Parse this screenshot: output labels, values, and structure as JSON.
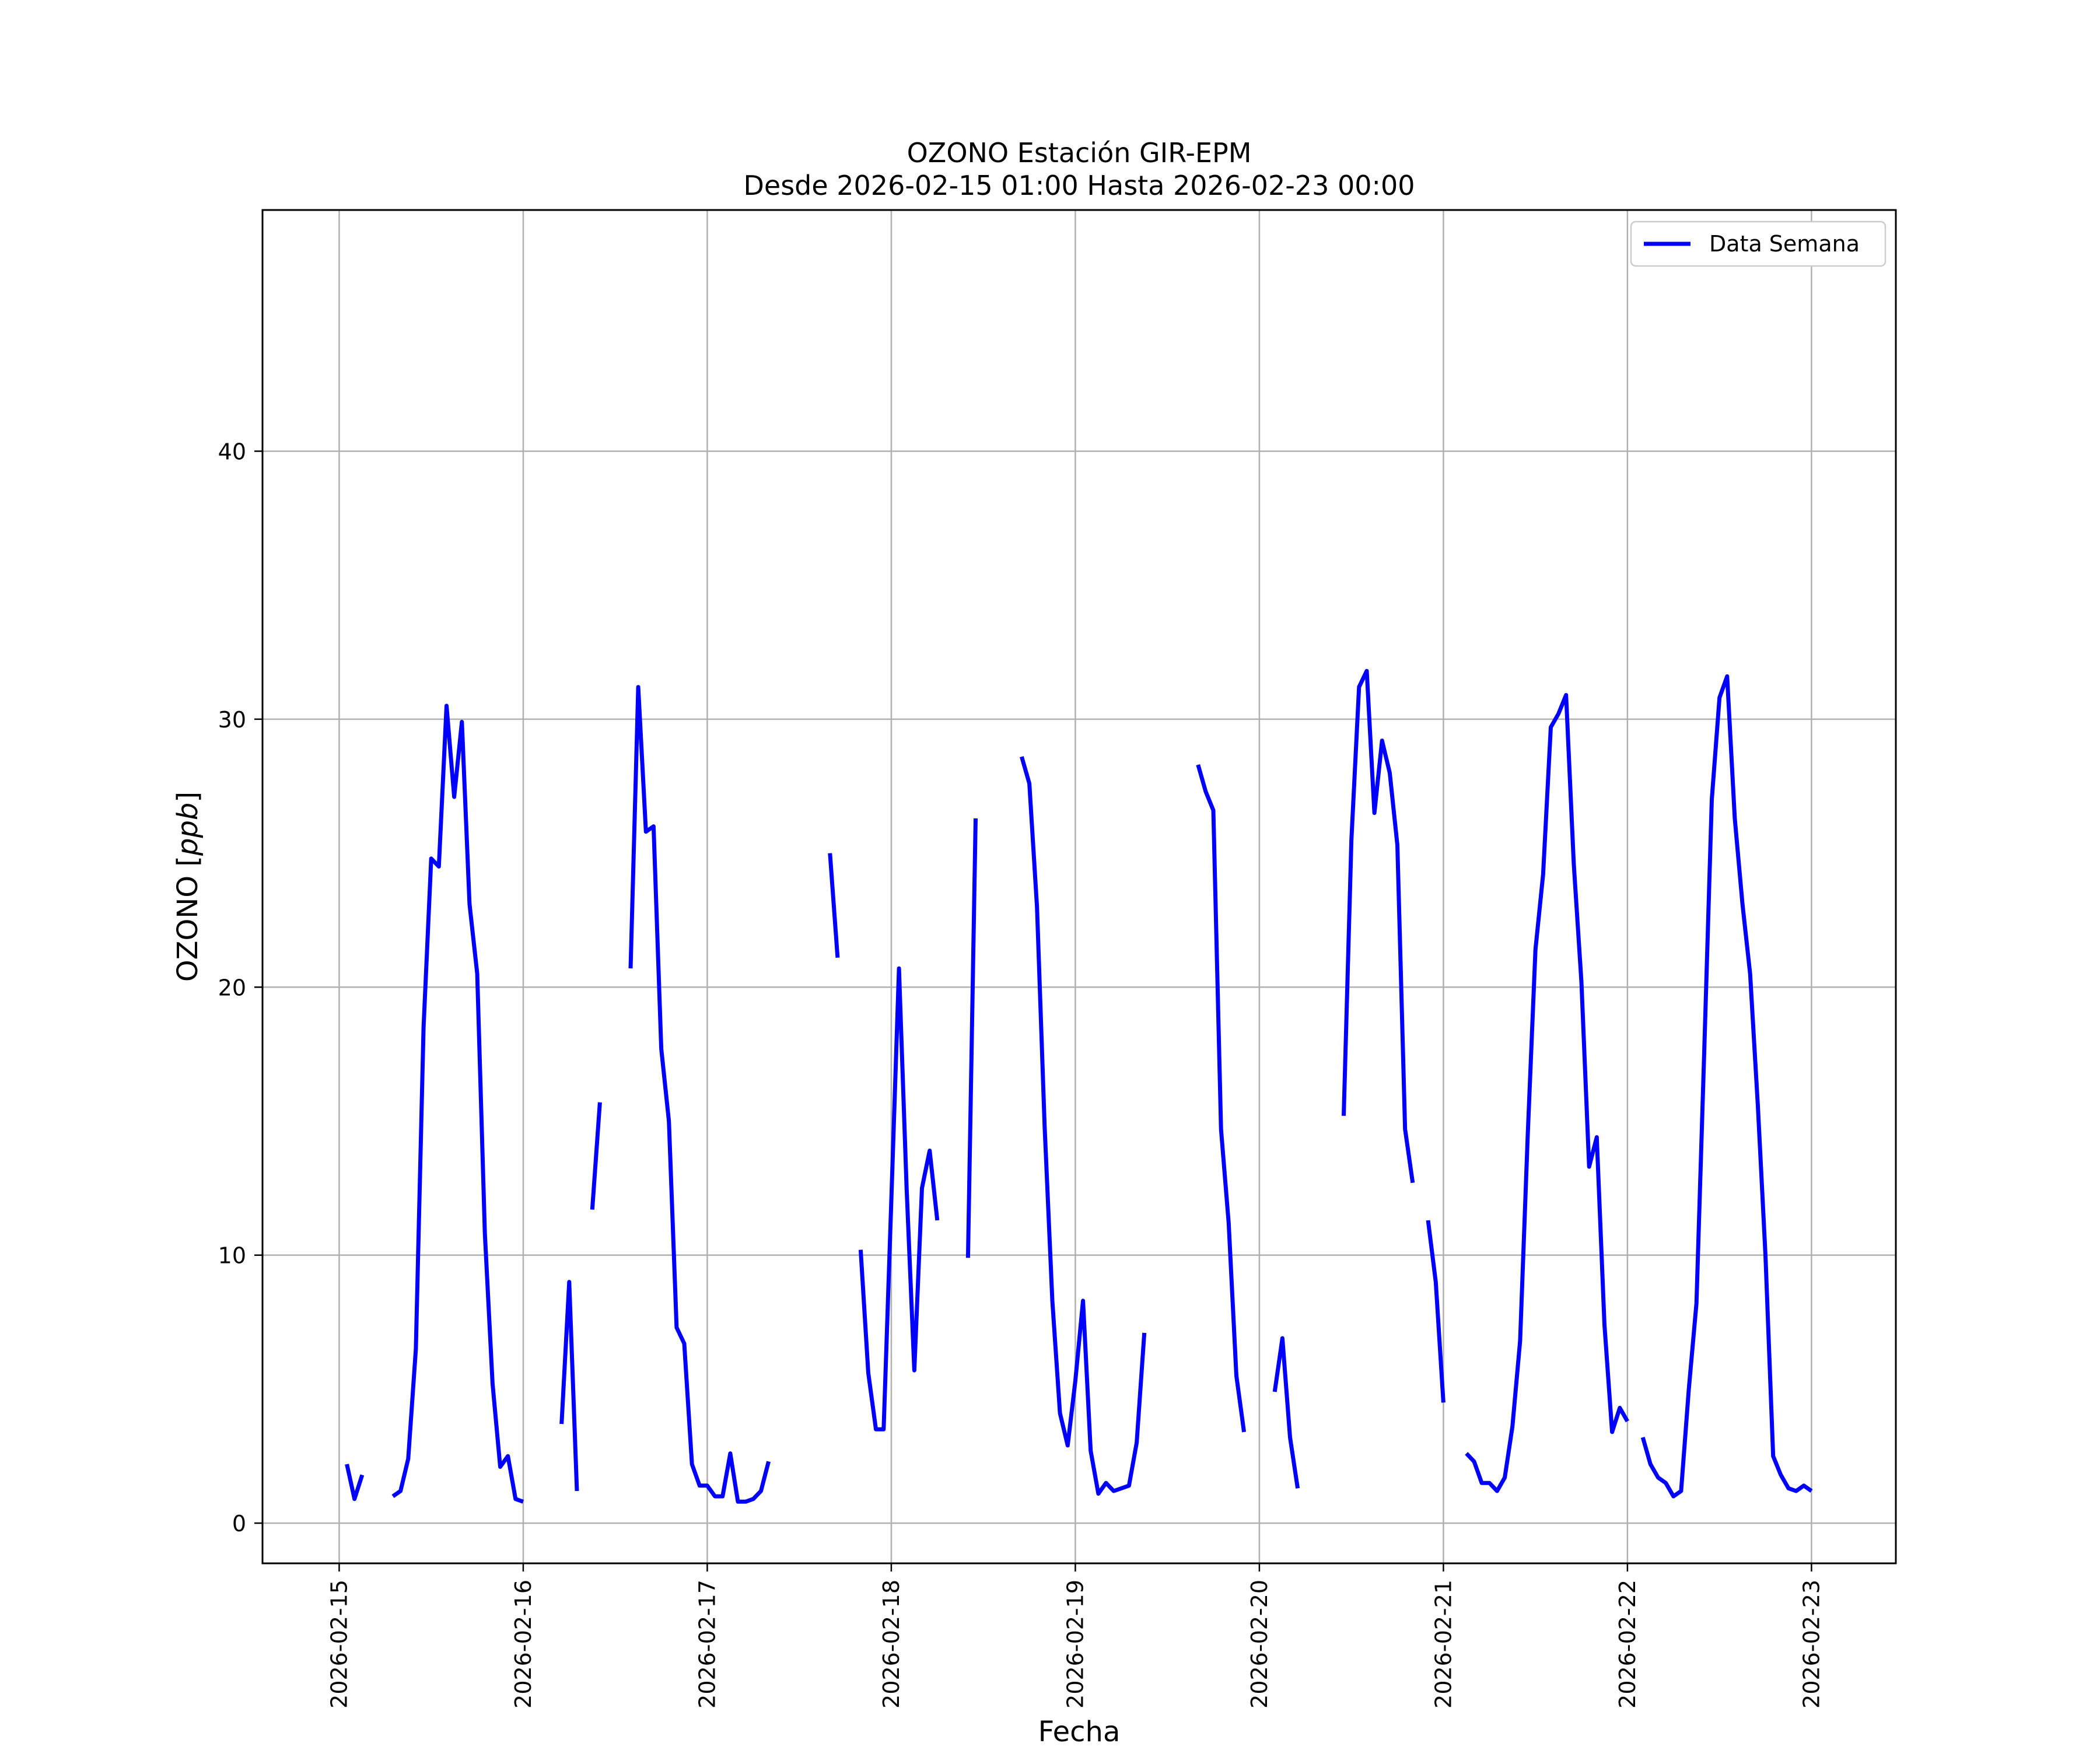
{
  "chart_data": {
    "type": "line",
    "title": "OZONO Estación GIR-EPM",
    "subtitle": "Desde 2026-02-15 01:00 Hasta 2026-02-23 00:00",
    "xlabel": "Fecha",
    "ylabel_prefix": "OZONO [",
    "ylabel_unit": "ppb",
    "ylabel_suffix": "]",
    "x_ticks": [
      "2026-02-15",
      "2026-02-16",
      "2026-02-17",
      "2026-02-18",
      "2026-02-19",
      "2026-02-20",
      "2026-02-21",
      "2026-02-22",
      "2026-02-23"
    ],
    "xlim": [
      "2026-02-14 14:00",
      "2026-02-23 11:00"
    ],
    "y_ticks": [
      0,
      10,
      20,
      30,
      40
    ],
    "ylim": [
      -1.5,
      49
    ],
    "grid": true,
    "legend_position": "upper right",
    "color": "#0000ff",
    "series": [
      {
        "name": "Data Semana",
        "points": [
          [
            "2026-02-15 01:00",
            2.2
          ],
          [
            "2026-02-15 02:00",
            0.9
          ],
          [
            "2026-02-15 03:00",
            1.8
          ],
          [
            "2026-02-15 04:00",
            null
          ],
          [
            "2026-02-15 07:00",
            1.0
          ],
          [
            "2026-02-15 08:00",
            1.2
          ],
          [
            "2026-02-15 09:00",
            2.4
          ],
          [
            "2026-02-15 10:00",
            6.5
          ],
          [
            "2026-02-15 11:00",
            18.5
          ],
          [
            "2026-02-15 12:00",
            24.8
          ],
          [
            "2026-02-15 13:00",
            24.5
          ],
          [
            "2026-02-15 14:00",
            30.5
          ],
          [
            "2026-02-15 15:00",
            27.1
          ],
          [
            "2026-02-15 16:00",
            29.9
          ],
          [
            "2026-02-15 17:00",
            23.1
          ],
          [
            "2026-02-15 18:00",
            20.5
          ],
          [
            "2026-02-15 19:00",
            10.8
          ],
          [
            "2026-02-15 20:00",
            5.2
          ],
          [
            "2026-02-15 21:00",
            2.1
          ],
          [
            "2026-02-15 22:00",
            2.5
          ],
          [
            "2026-02-15 23:00",
            0.9
          ],
          [
            "2026-02-16 00:00",
            0.8
          ],
          [
            "2026-02-16 01:00",
            null
          ],
          [
            "2026-02-16 05:00",
            3.7
          ],
          [
            "2026-02-16 06:00",
            9.0
          ],
          [
            "2026-02-16 07:00",
            1.2
          ],
          [
            "2026-02-16 08:00",
            null
          ],
          [
            "2026-02-16 09:00",
            11.7
          ],
          [
            "2026-02-16 10:00",
            15.7
          ],
          [
            "2026-02-16 11:00",
            null
          ],
          [
            "2026-02-16 14:00",
            20.7
          ],
          [
            "2026-02-16 15:00",
            31.2
          ],
          [
            "2026-02-16 16:00",
            25.8
          ],
          [
            "2026-02-16 17:00",
            26.0
          ],
          [
            "2026-02-16 18:00",
            17.7
          ],
          [
            "2026-02-16 19:00",
            15.0
          ],
          [
            "2026-02-16 20:00",
            7.3
          ],
          [
            "2026-02-16 21:00",
            6.7
          ],
          [
            "2026-02-16 22:00",
            2.2
          ],
          [
            "2026-02-16 23:00",
            1.4
          ],
          [
            "2026-02-17 00:00",
            1.4
          ],
          [
            "2026-02-17 01:00",
            1.0
          ],
          [
            "2026-02-17 02:00",
            1.0
          ],
          [
            "2026-02-17 03:00",
            2.6
          ],
          [
            "2026-02-17 04:00",
            0.8
          ],
          [
            "2026-02-17 05:00",
            0.8
          ],
          [
            "2026-02-17 06:00",
            0.9
          ],
          [
            "2026-02-17 07:00",
            1.2
          ],
          [
            "2026-02-17 08:00",
            2.3
          ],
          [
            "2026-02-17 09:00",
            null
          ],
          [
            "2026-02-17 16:00",
            25.0
          ],
          [
            "2026-02-17 17:00",
            21.1
          ],
          [
            "2026-02-17 18:00",
            null
          ],
          [
            "2026-02-17 20:00",
            10.2
          ],
          [
            "2026-02-17 21:00",
            5.6
          ],
          [
            "2026-02-17 22:00",
            3.5
          ],
          [
            "2026-02-17 23:00",
            3.5
          ],
          [
            "2026-02-18 00:00",
            12.0
          ],
          [
            "2026-02-18 01:00",
            20.7
          ],
          [
            "2026-02-18 02:00",
            12.5
          ],
          [
            "2026-02-18 03:00",
            5.7
          ],
          [
            "2026-02-18 04:00",
            12.5
          ],
          [
            "2026-02-18 05:00",
            13.9
          ],
          [
            "2026-02-18 06:00",
            11.3
          ],
          [
            "2026-02-18 07:00",
            null
          ],
          [
            "2026-02-18 10:00",
            9.9
          ],
          [
            "2026-02-18 11:00",
            26.3
          ],
          [
            "2026-02-18 12:00",
            null
          ],
          [
            "2026-02-18 17:00",
            28.6
          ],
          [
            "2026-02-18 18:00",
            27.6
          ],
          [
            "2026-02-18 19:00",
            23.0
          ],
          [
            "2026-02-18 20:00",
            14.8
          ],
          [
            "2026-02-18 21:00",
            8.3
          ],
          [
            "2026-02-18 22:00",
            4.1
          ],
          [
            "2026-02-18 23:00",
            2.9
          ],
          [
            "2026-02-19 00:00",
            5.3
          ],
          [
            "2026-02-19 01:00",
            8.3
          ],
          [
            "2026-02-19 02:00",
            2.7
          ],
          [
            "2026-02-19 03:00",
            1.1
          ],
          [
            "2026-02-19 04:00",
            1.5
          ],
          [
            "2026-02-19 05:00",
            1.2
          ],
          [
            "2026-02-19 06:00",
            1.3
          ],
          [
            "2026-02-19 07:00",
            1.4
          ],
          [
            "2026-02-19 08:00",
            3.0
          ],
          [
            "2026-02-19 09:00",
            7.1
          ],
          [
            "2026-02-19 10:00",
            null
          ],
          [
            "2026-02-19 16:00",
            28.3
          ],
          [
            "2026-02-19 17:00",
            27.3
          ],
          [
            "2026-02-19 18:00",
            26.6
          ],
          [
            "2026-02-19 19:00",
            14.7
          ],
          [
            "2026-02-19 20:00",
            11.2
          ],
          [
            "2026-02-19 21:00",
            5.5
          ],
          [
            "2026-02-19 22:00",
            3.4
          ],
          [
            "2026-02-19 23:00",
            null
          ],
          [
            "2026-02-20 02:00",
            4.9
          ],
          [
            "2026-02-20 03:00",
            6.9
          ],
          [
            "2026-02-20 04:00",
            3.2
          ],
          [
            "2026-02-20 05:00",
            1.3
          ],
          [
            "2026-02-20 06:00",
            null
          ],
          [
            "2026-02-20 11:00",
            15.2
          ],
          [
            "2026-02-20 12:00",
            25.5
          ],
          [
            "2026-02-20 13:00",
            31.2
          ],
          [
            "2026-02-20 14:00",
            31.8
          ],
          [
            "2026-02-20 15:00",
            26.5
          ],
          [
            "2026-02-20 16:00",
            29.2
          ],
          [
            "2026-02-20 17:00",
            28.0
          ],
          [
            "2026-02-20 18:00",
            25.3
          ],
          [
            "2026-02-20 19:00",
            14.7
          ],
          [
            "2026-02-20 20:00",
            12.7
          ],
          [
            "2026-02-20 21:00",
            null
          ],
          [
            "2026-02-20 22:00",
            11.3
          ],
          [
            "2026-02-20 23:00",
            9.0
          ],
          [
            "2026-02-21 00:00",
            4.5
          ],
          [
            "2026-02-21 01:00",
            null
          ],
          [
            "2026-02-21 03:00",
            2.6
          ],
          [
            "2026-02-21 04:00",
            2.3
          ],
          [
            "2026-02-21 05:00",
            1.5
          ],
          [
            "2026-02-21 06:00",
            1.5
          ],
          [
            "2026-02-21 07:00",
            1.2
          ],
          [
            "2026-02-21 08:00",
            1.7
          ],
          [
            "2026-02-21 09:00",
            3.6
          ],
          [
            "2026-02-21 10:00",
            6.8
          ],
          [
            "2026-02-21 11:00",
            14.5
          ],
          [
            "2026-02-21 12:00",
            21.4
          ],
          [
            "2026-02-21 13:00",
            24.2
          ],
          [
            "2026-02-21 14:00",
            29.7
          ],
          [
            "2026-02-21 15:00",
            30.2
          ],
          [
            "2026-02-21 16:00",
            30.9
          ],
          [
            "2026-02-21 17:00",
            24.6
          ],
          [
            "2026-02-21 18:00",
            20.2
          ],
          [
            "2026-02-21 19:00",
            13.3
          ],
          [
            "2026-02-21 20:00",
            14.4
          ],
          [
            "2026-02-21 21:00",
            7.4
          ],
          [
            "2026-02-21 22:00",
            3.4
          ],
          [
            "2026-02-21 23:00",
            4.3
          ],
          [
            "2026-02-22 00:00",
            3.8
          ],
          [
            "2026-02-22 01:00",
            null
          ],
          [
            "2026-02-22 02:00",
            3.2
          ],
          [
            "2026-02-22 03:00",
            2.2
          ],
          [
            "2026-02-22 04:00",
            1.7
          ],
          [
            "2026-02-22 05:00",
            1.5
          ],
          [
            "2026-02-22 06:00",
            1.0
          ],
          [
            "2026-02-22 07:00",
            1.2
          ],
          [
            "2026-02-22 08:00",
            5.0
          ],
          [
            "2026-02-22 09:00",
            8.2
          ],
          [
            "2026-02-22 10:00",
            17.5
          ],
          [
            "2026-02-22 11:00",
            27.0
          ],
          [
            "2026-02-22 12:00",
            30.8
          ],
          [
            "2026-02-22 13:00",
            31.6
          ],
          [
            "2026-02-22 14:00",
            26.3
          ],
          [
            "2026-02-22 15:00",
            23.1
          ],
          [
            "2026-02-22 16:00",
            20.5
          ],
          [
            "2026-02-22 17:00",
            15.6
          ],
          [
            "2026-02-22 18:00",
            10.0
          ],
          [
            "2026-02-22 19:00",
            2.5
          ],
          [
            "2026-02-22 20:00",
            1.8
          ],
          [
            "2026-02-22 21:00",
            1.3
          ],
          [
            "2026-02-22 22:00",
            1.2
          ],
          [
            "2026-02-22 23:00",
            1.4
          ],
          [
            "2026-02-23 00:00",
            1.2
          ]
        ]
      }
    ]
  }
}
